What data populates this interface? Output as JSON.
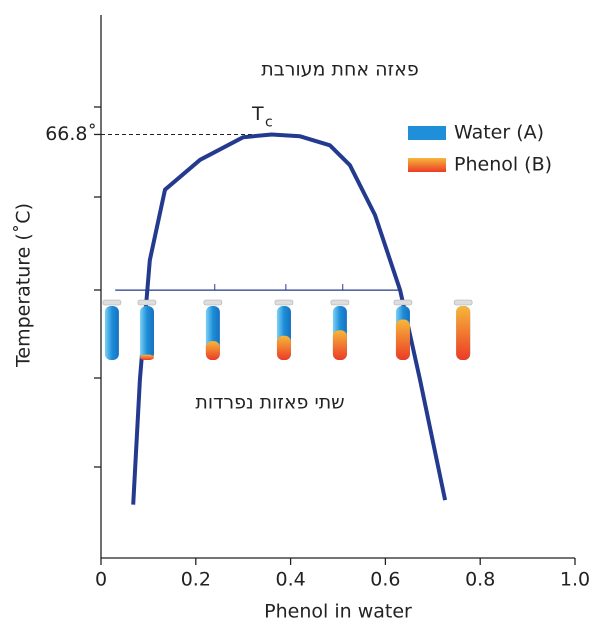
{
  "chart_data": {
    "type": "line",
    "x_label": "Phenol in water",
    "y_label": "Temperature (˚C)",
    "xlim": [
      0,
      1
    ],
    "xticks": [
      0,
      0.2,
      0.4,
      0.6,
      0.8,
      {
        "value": 1,
        "label": "1.0"
      }
    ],
    "ylim": [
      20,
      80
    ],
    "yticks": [
      {
        "value": 66.8,
        "label": "66.8˚"
      }
    ],
    "x": [
      0.068,
      0.082,
      0.103,
      0.135,
      0.209,
      0.3,
      0.36,
      0.42,
      0.483,
      0.525,
      0.578,
      0.631,
      0.673,
      0.726
    ],
    "values": [
      25.9,
      39.7,
      52.9,
      60.7,
      64.0,
      66.5,
      66.8,
      66.6,
      65.6,
      63.4,
      57.9,
      49.6,
      39.7,
      26.4
    ],
    "color": "#233a8f",
    "critical_point": {
      "x": 0.36,
      "y": 66.8,
      "label": "T",
      "sub": "c"
    },
    "tie_line": {
      "x": [
        0.03,
        0.63
      ],
      "y": 49.6
    },
    "tubes": {
      "x": [
        0.023,
        0.097,
        0.236,
        0.386,
        0.504,
        0.637,
        0.764
      ],
      "phenol_fraction": [
        0,
        0.1,
        0.35,
        0.45,
        0.55,
        0.75,
        1
      ]
    },
    "legend": [
      {
        "name": "Water (A)",
        "color": "#1e8fd8"
      },
      {
        "name": "Phenol (B)",
        "color": "#f05a28"
      }
    ],
    "annotations": [
      "פאזה אחת מעורבת",
      "שתי פאזות נפרדות"
    ]
  }
}
